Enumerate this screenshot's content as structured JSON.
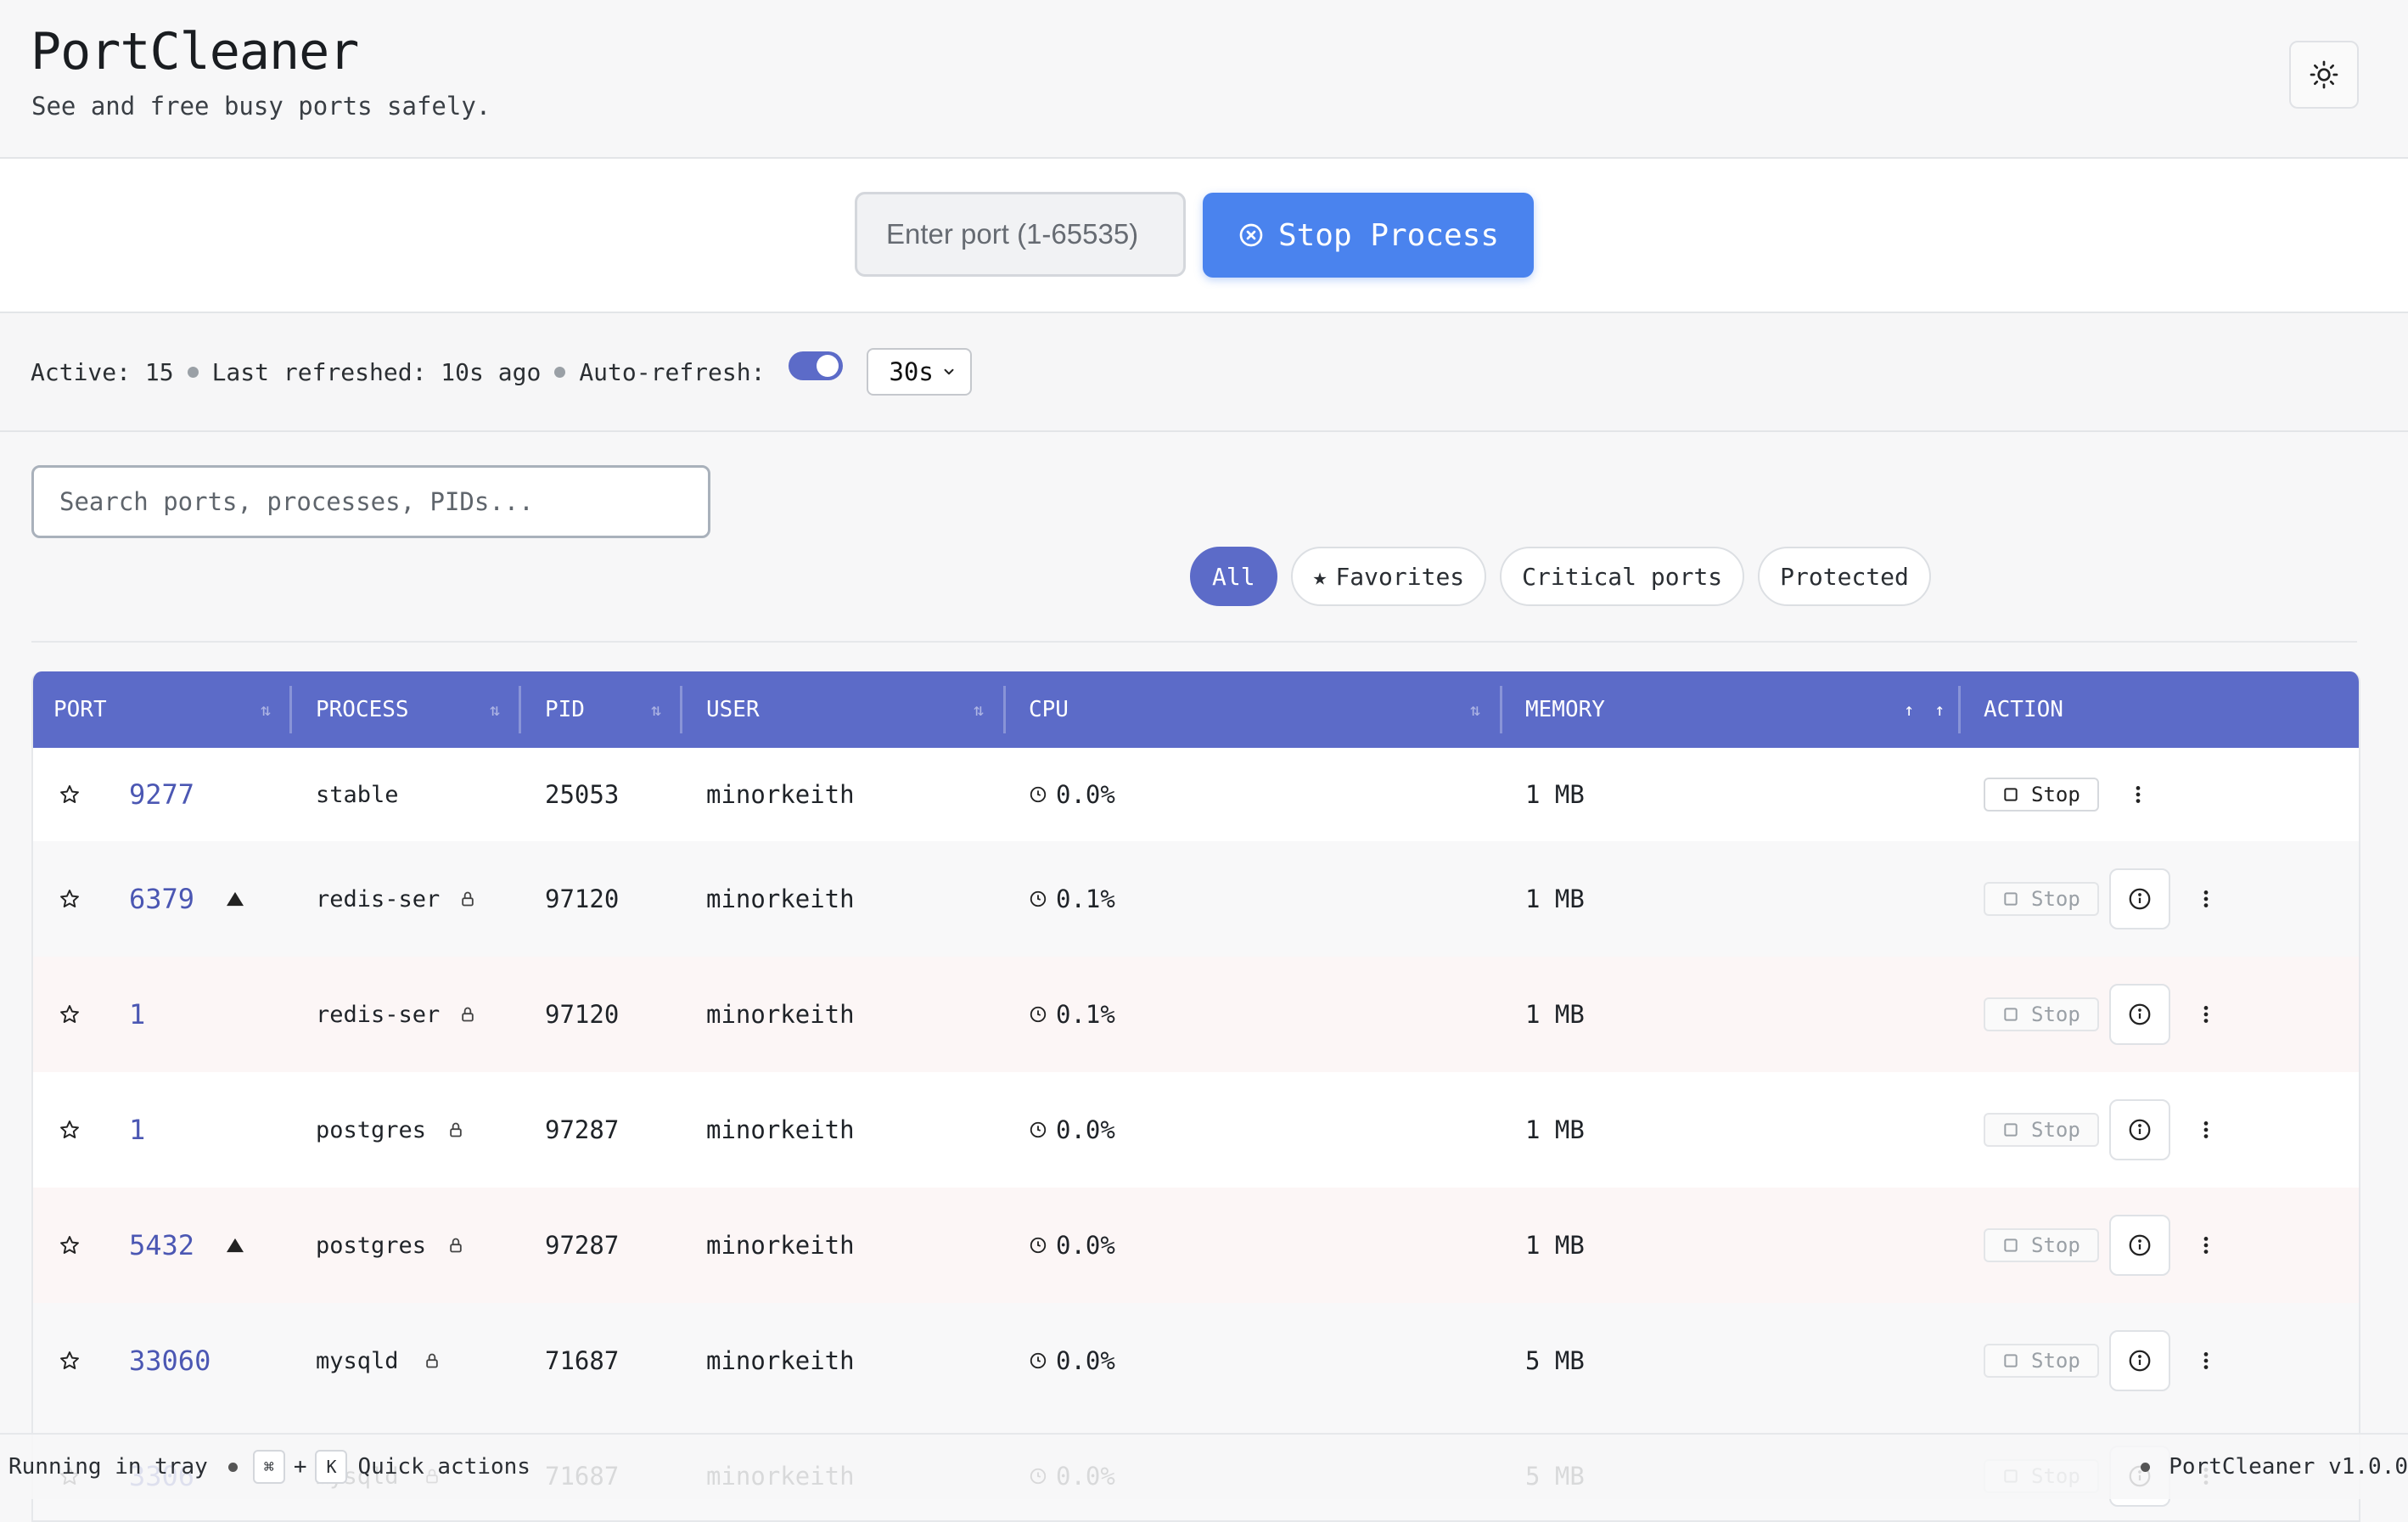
{
  "header": {
    "title": "PortCleaner",
    "subtitle": "See and free busy ports safely.",
    "theme_icon": "sun-icon"
  },
  "stop_panel": {
    "port_placeholder": "Enter port (1-65535)",
    "stop_label": "Stop Process",
    "accent": "#4a83ee"
  },
  "status": {
    "active": "Active: 15",
    "last_refreshed": "Last refreshed: 10s ago",
    "auto_refresh_label": "Auto-refresh:",
    "auto_refresh_on": true,
    "interval": "30s"
  },
  "search": {
    "placeholder": "Search ports, processes, PIDs..."
  },
  "filters": {
    "all": "All",
    "favorites": "Favorites",
    "critical": "Critical ports",
    "protected": "Protected"
  },
  "table": {
    "columns": {
      "port": "PORT",
      "process": "PROCESS",
      "pid": "PID",
      "user": "USER",
      "cpu": "CPU",
      "memory": "MEMORY",
      "action": "ACTION"
    },
    "header_color": "#5c6bc8",
    "stop_label": "Stop",
    "rows": [
      {
        "port": "9277",
        "process": "stable",
        "pid": "25053",
        "user": "minorkeith",
        "cpu": "0.0%",
        "memory": "1 MB"
      },
      {
        "port": "6379",
        "process": "redis-ser",
        "pid": "97120",
        "user": "minorkeith",
        "cpu": "0.1%",
        "memory": "1 MB"
      },
      {
        "port": "1",
        "process": "redis-ser",
        "pid": "97120",
        "user": "minorkeith",
        "cpu": "0.1%",
        "memory": "1 MB"
      },
      {
        "port": "1",
        "process": "postgres",
        "pid": "97287",
        "user": "minorkeith",
        "cpu": "0.0%",
        "memory": "1 MB"
      },
      {
        "port": "5432",
        "process": "postgres",
        "pid": "97287",
        "user": "minorkeith",
        "cpu": "0.0%",
        "memory": "1 MB"
      },
      {
        "port": "33060",
        "process": "mysqld",
        "pid": "71687",
        "user": "minorkeith",
        "cpu": "0.0%",
        "memory": "5 MB"
      },
      {
        "port": "3306",
        "process": "mysqld",
        "pid": "71687",
        "user": "minorkeith",
        "cpu": "0.0%",
        "memory": "5 MB"
      }
    ]
  },
  "footer": {
    "tray": "Running in tray",
    "key_cmd": "⌘",
    "plus": "+",
    "key_k": "K",
    "quick": "Quick actions",
    "version": "PortCleaner v1.0.0"
  }
}
